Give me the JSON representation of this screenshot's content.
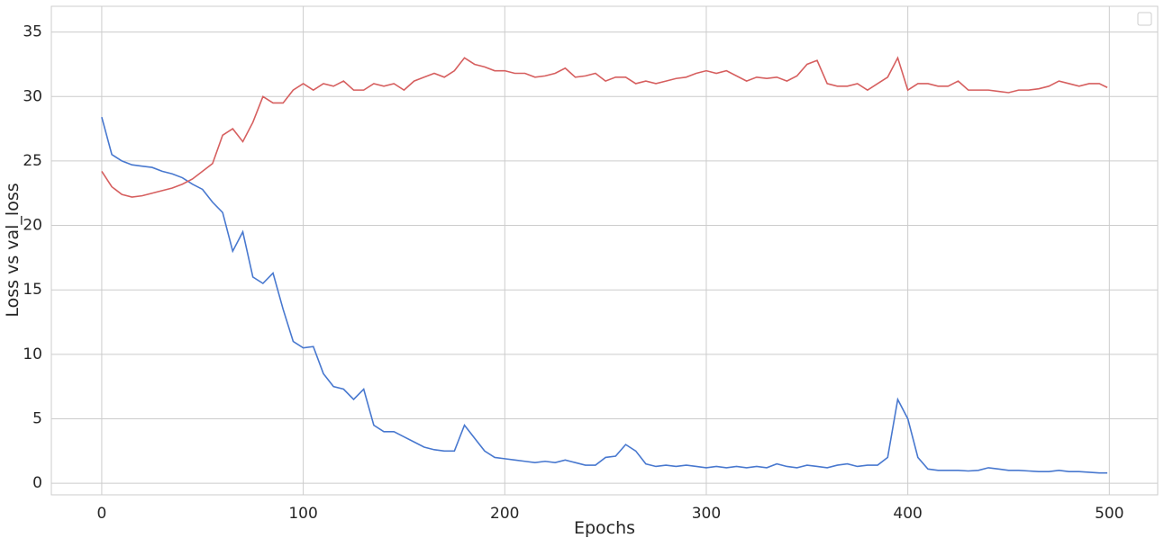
{
  "chart_data": {
    "type": "line",
    "x_label": "Epochs",
    "y_label": "Loss vs val_loss",
    "x": [
      0,
      5,
      10,
      15,
      20,
      25,
      30,
      35,
      40,
      45,
      50,
      55,
      60,
      65,
      70,
      75,
      80,
      85,
      90,
      95,
      100,
      105,
      110,
      115,
      120,
      125,
      130,
      135,
      140,
      145,
      150,
      155,
      160,
      165,
      170,
      175,
      180,
      185,
      190,
      195,
      200,
      205,
      210,
      215,
      220,
      225,
      230,
      235,
      240,
      245,
      250,
      255,
      260,
      265,
      270,
      275,
      280,
      285,
      290,
      295,
      300,
      305,
      310,
      315,
      320,
      325,
      330,
      335,
      340,
      345,
      350,
      355,
      360,
      365,
      370,
      375,
      380,
      385,
      390,
      395,
      400,
      405,
      410,
      415,
      420,
      425,
      430,
      435,
      440,
      445,
      450,
      455,
      460,
      465,
      470,
      475,
      480,
      485,
      490,
      495,
      499
    ],
    "series": [
      {
        "color": "#4878cf",
        "values": [
          28.4,
          25.5,
          25.0,
          24.7,
          24.6,
          24.5,
          24.2,
          24.0,
          23.7,
          23.2,
          22.8,
          21.8,
          21.0,
          18.0,
          19.5,
          16.0,
          15.5,
          16.3,
          13.5,
          11.0,
          10.5,
          10.6,
          8.5,
          7.5,
          7.3,
          6.5,
          7.3,
          4.5,
          4.0,
          4.0,
          3.6,
          3.2,
          2.8,
          2.6,
          2.5,
          2.5,
          4.5,
          3.5,
          2.5,
          2.0,
          1.9,
          1.8,
          1.7,
          1.6,
          1.7,
          1.6,
          1.8,
          1.6,
          1.4,
          1.4,
          2.0,
          2.1,
          3.0,
          2.5,
          1.5,
          1.3,
          1.4,
          1.3,
          1.4,
          1.3,
          1.2,
          1.3,
          1.2,
          1.3,
          1.2,
          1.3,
          1.2,
          1.5,
          1.3,
          1.2,
          1.4,
          1.3,
          1.2,
          1.4,
          1.5,
          1.3,
          1.4,
          1.4,
          2.0,
          6.5,
          5.0,
          2.0,
          1.1,
          1.0,
          1.0,
          1.0,
          0.95,
          1.0,
          1.2,
          1.1,
          1.0,
          1.0,
          0.95,
          0.9,
          0.9,
          1.0,
          0.9,
          0.9,
          0.85,
          0.8,
          0.8
        ]
      },
      {
        "color": "#d65f5f",
        "values": [
          24.2,
          23.0,
          22.4,
          22.2,
          22.3,
          22.5,
          22.7,
          22.9,
          23.2,
          23.6,
          24.2,
          24.8,
          27.0,
          27.5,
          26.5,
          28.0,
          30.0,
          29.5,
          29.5,
          30.5,
          31.0,
          30.5,
          31.0,
          30.8,
          31.2,
          30.5,
          30.5,
          31.0,
          30.8,
          31.0,
          30.5,
          31.2,
          31.5,
          31.8,
          31.5,
          32.0,
          33.0,
          32.5,
          32.3,
          32.0,
          32.0,
          31.8,
          31.8,
          31.5,
          31.6,
          31.8,
          32.2,
          31.5,
          31.6,
          31.8,
          31.2,
          31.5,
          31.5,
          31.0,
          31.2,
          31.0,
          31.2,
          31.4,
          31.5,
          31.8,
          32.0,
          31.8,
          32.0,
          31.6,
          31.2,
          31.5,
          31.4,
          31.5,
          31.2,
          31.6,
          32.5,
          32.8,
          31.0,
          30.8,
          30.8,
          31.0,
          30.5,
          31.0,
          31.5,
          33.0,
          30.5,
          31.0,
          31.0,
          30.8,
          30.8,
          31.2,
          30.5,
          30.5,
          30.5,
          30.4,
          30.3,
          30.5,
          30.5,
          30.6,
          30.8,
          31.2,
          31.0,
          30.8,
          31.0,
          31.0,
          30.7
        ]
      }
    ],
    "xlim": [
      -25,
      524
    ],
    "ylim": [
      -0.9,
      37
    ],
    "xticks": [
      0,
      100,
      200,
      300,
      400,
      500
    ],
    "yticks": [
      0,
      5,
      10,
      15,
      20,
      25,
      30,
      35
    ],
    "grid": true,
    "legend": "upper right"
  }
}
